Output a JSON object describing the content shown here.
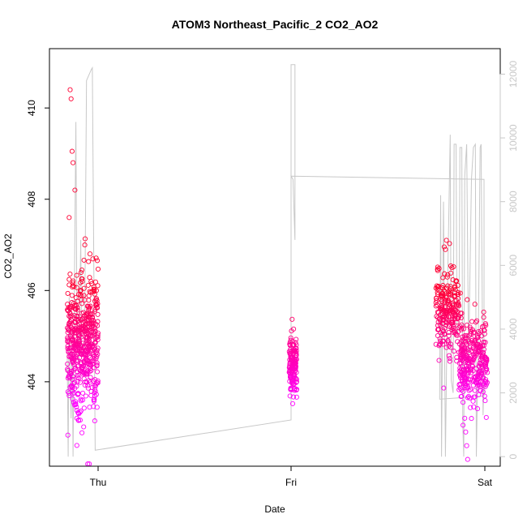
{
  "chart_data": {
    "type": "scatter",
    "title": "ATOM3 Northeast_Pacific_2 CO2_AO2",
    "xlabel": "Date",
    "ylabel": "CO2_AO2",
    "x_ticks": [
      "Thu",
      "Fri",
      "Sat"
    ],
    "ylim": [
      402.15,
      411.3
    ],
    "y_ticks": [
      404,
      406,
      408,
      410
    ],
    "y2lim": [
      -300,
      12800
    ],
    "y2_ticks": [
      0,
      2000,
      4000,
      6000,
      8000,
      10000,
      12000
    ],
    "x_domain_days": [
      "Thu",
      "Sat"
    ],
    "colors": {
      "points_low": "#ff00ff",
      "points_high": "#ff0033",
      "secondary_line": "#c8c8c8"
    },
    "series": [
      {
        "kind": "scatter",
        "axis": "left",
        "clusters": [
          {
            "day_from": -0.16,
            "day_to": 0.0,
            "y_mean": 404.9,
            "y_sd": 0.75,
            "count": 520
          },
          {
            "day_from": 0.99,
            "day_to": 1.03,
            "y_mean": 404.4,
            "y_sd": 0.35,
            "count": 140
          },
          {
            "day_from": 1.75,
            "day_to": 1.87,
            "y_mean": 405.6,
            "y_sd": 0.45,
            "count": 220
          },
          {
            "day_from": 1.87,
            "day_to": 2.02,
            "y_mean": 404.4,
            "y_sd": 0.45,
            "count": 320
          }
        ],
        "extremes": [
          {
            "day": -0.145,
            "y": 410.4
          },
          {
            "day": -0.14,
            "y": 410.2
          },
          {
            "day": -0.135,
            "y": 409.05
          },
          {
            "day": -0.13,
            "y": 408.8
          },
          {
            "day": -0.12,
            "y": 408.2
          },
          {
            "day": -0.15,
            "y": 407.6
          },
          {
            "day": -0.11,
            "y": 403.2
          },
          {
            "day": -0.1,
            "y": 403.3
          },
          {
            "day": -0.08,
            "y": 403.6
          },
          {
            "day": 1.805,
            "y": 407.1
          },
          {
            "day": 1.8,
            "y": 406.9
          },
          {
            "day": 1.905,
            "y": 402.9
          },
          {
            "day": 1.91,
            "y": 402.6
          },
          {
            "day": 1.915,
            "y": 402.3
          },
          {
            "day": 1.9,
            "y": 403.2
          }
        ]
      },
      {
        "kind": "line",
        "axis": "right",
        "points": [
          {
            "day": -0.16,
            "y": 3200
          },
          {
            "day": -0.155,
            "y": 0
          },
          {
            "day": -0.15,
            "y": 5000
          },
          {
            "day": -0.145,
            "y": 2500
          },
          {
            "day": -0.14,
            "y": 1200
          },
          {
            "day": -0.135,
            "y": 4000
          },
          {
            "day": -0.13,
            "y": 0
          },
          {
            "day": -0.12,
            "y": 7200
          },
          {
            "day": -0.115,
            "y": 10500
          },
          {
            "day": -0.11,
            "y": 4500
          },
          {
            "day": -0.1,
            "y": 3000
          },
          {
            "day": -0.09,
            "y": 6800
          },
          {
            "day": -0.085,
            "y": 3200
          },
          {
            "day": -0.07,
            "y": 3400
          },
          {
            "day": -0.06,
            "y": 11800
          },
          {
            "day": -0.035,
            "y": 12150
          },
          {
            "day": -0.03,
            "y": 12200
          },
          {
            "day": -0.015,
            "y": 200
          },
          {
            "day": 1.0,
            "y": 1150
          },
          {
            "day": 1.0,
            "y": 12300
          },
          {
            "day": 1.02,
            "y": 12300
          },
          {
            "day": 1.02,
            "y": 6800
          },
          {
            "day": 1.01,
            "y": 8700
          },
          {
            "day": 1.0,
            "y": 8800
          },
          {
            "day": 2.0,
            "y": 8700
          },
          {
            "day": 2.0,
            "y": 1900
          },
          {
            "day": 1.77,
            "y": 1800
          },
          {
            "day": 1.775,
            "y": 8200
          },
          {
            "day": 1.78,
            "y": 0
          },
          {
            "day": 1.79,
            "y": 8000
          },
          {
            "day": 1.8,
            "y": 0
          },
          {
            "day": 1.81,
            "y": 5000
          },
          {
            "day": 1.825,
            "y": 10100
          },
          {
            "day": 1.83,
            "y": 2400
          },
          {
            "day": 1.84,
            "y": 2000
          },
          {
            "day": 1.845,
            "y": 9800
          },
          {
            "day": 1.855,
            "y": 9800
          },
          {
            "day": 1.86,
            "y": 3800
          },
          {
            "day": 1.87,
            "y": 4200
          },
          {
            "day": 1.875,
            "y": 9700
          },
          {
            "day": 1.885,
            "y": 9700
          },
          {
            "day": 1.89,
            "y": 1000
          },
          {
            "day": 1.895,
            "y": 0
          },
          {
            "day": 1.9,
            "y": 8800
          },
          {
            "day": 1.91,
            "y": 9800
          },
          {
            "day": 1.92,
            "y": 3000
          },
          {
            "day": 1.935,
            "y": 8700
          },
          {
            "day": 1.945,
            "y": 9700
          },
          {
            "day": 1.955,
            "y": 9800
          },
          {
            "day": 1.96,
            "y": 0
          },
          {
            "day": 1.97,
            "y": 3500
          },
          {
            "day": 1.98,
            "y": 9700
          },
          {
            "day": 1.985,
            "y": 9800
          },
          {
            "day": 1.995,
            "y": 1300
          },
          {
            "day": 2.0,
            "y": 2500
          }
        ]
      }
    ]
  }
}
